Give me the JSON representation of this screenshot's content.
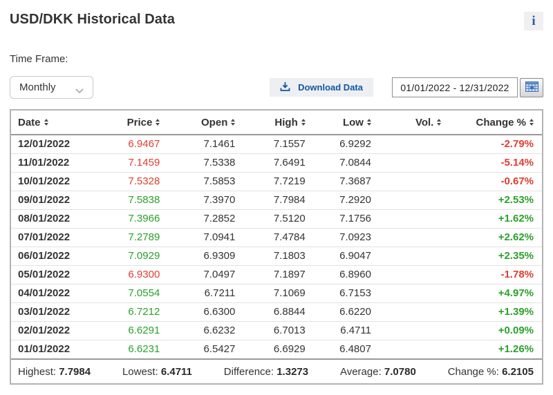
{
  "page": {
    "title": "USD/DKK Historical Data",
    "info_icon_glyph": "i"
  },
  "controls": {
    "time_frame_label": "Time Frame:",
    "time_frame_selected": "Monthly",
    "download_label": "Download Data",
    "date_range_value": "01/01/2022 - 12/31/2022"
  },
  "table": {
    "columns": [
      {
        "key": "date",
        "label": "Date"
      },
      {
        "key": "price",
        "label": "Price"
      },
      {
        "key": "open",
        "label": "Open"
      },
      {
        "key": "high",
        "label": "High"
      },
      {
        "key": "low",
        "label": "Low"
      },
      {
        "key": "vol",
        "label": "Vol."
      },
      {
        "key": "change",
        "label": "Change %"
      }
    ],
    "rows": [
      {
        "date": "12/01/2022",
        "price": "6.9467",
        "open": "7.1461",
        "high": "7.1557",
        "low": "6.9292",
        "vol": "",
        "change": "-2.79%",
        "dir": "down"
      },
      {
        "date": "11/01/2022",
        "price": "7.1459",
        "open": "7.5338",
        "high": "7.6491",
        "low": "7.0844",
        "vol": "",
        "change": "-5.14%",
        "dir": "down"
      },
      {
        "date": "10/01/2022",
        "price": "7.5328",
        "open": "7.5853",
        "high": "7.7219",
        "low": "7.3687",
        "vol": "",
        "change": "-0.67%",
        "dir": "down"
      },
      {
        "date": "09/01/2022",
        "price": "7.5838",
        "open": "7.3970",
        "high": "7.7984",
        "low": "7.2920",
        "vol": "",
        "change": "+2.53%",
        "dir": "up"
      },
      {
        "date": "08/01/2022",
        "price": "7.3966",
        "open": "7.2852",
        "high": "7.5120",
        "low": "7.1756",
        "vol": "",
        "change": "+1.62%",
        "dir": "up"
      },
      {
        "date": "07/01/2022",
        "price": "7.2789",
        "open": "7.0941",
        "high": "7.4784",
        "low": "7.0923",
        "vol": "",
        "change": "+2.62%",
        "dir": "up"
      },
      {
        "date": "06/01/2022",
        "price": "7.0929",
        "open": "6.9309",
        "high": "7.1803",
        "low": "6.9047",
        "vol": "",
        "change": "+2.35%",
        "dir": "up"
      },
      {
        "date": "05/01/2022",
        "price": "6.9300",
        "open": "7.0497",
        "high": "7.1897",
        "low": "6.8960",
        "vol": "",
        "change": "-1.78%",
        "dir": "down"
      },
      {
        "date": "04/01/2022",
        "price": "7.0554",
        "open": "6.7211",
        "high": "7.1069",
        "low": "6.7153",
        "vol": "",
        "change": "+4.97%",
        "dir": "up"
      },
      {
        "date": "03/01/2022",
        "price": "6.7212",
        "open": "6.6300",
        "high": "6.8844",
        "low": "6.6220",
        "vol": "",
        "change": "+1.39%",
        "dir": "up"
      },
      {
        "date": "02/01/2022",
        "price": "6.6291",
        "open": "6.6232",
        "high": "6.7013",
        "low": "6.4711",
        "vol": "",
        "change": "+0.09%",
        "dir": "up"
      },
      {
        "date": "01/01/2022",
        "price": "6.6231",
        "open": "6.5427",
        "high": "6.6929",
        "low": "6.4807",
        "vol": "",
        "change": "+1.26%",
        "dir": "up"
      }
    ],
    "summary": [
      {
        "label": "Highest:",
        "value": "7.7984"
      },
      {
        "label": "Lowest:",
        "value": "6.4711"
      },
      {
        "label": "Difference:",
        "value": "1.3273"
      },
      {
        "label": "Average:",
        "value": "7.0780"
      },
      {
        "label": "Change %:",
        "value": "6.2105"
      }
    ]
  },
  "colors": {
    "up_green": "#2aa12a",
    "down_red": "#e13c30",
    "accent_blue": "#1256a0"
  }
}
